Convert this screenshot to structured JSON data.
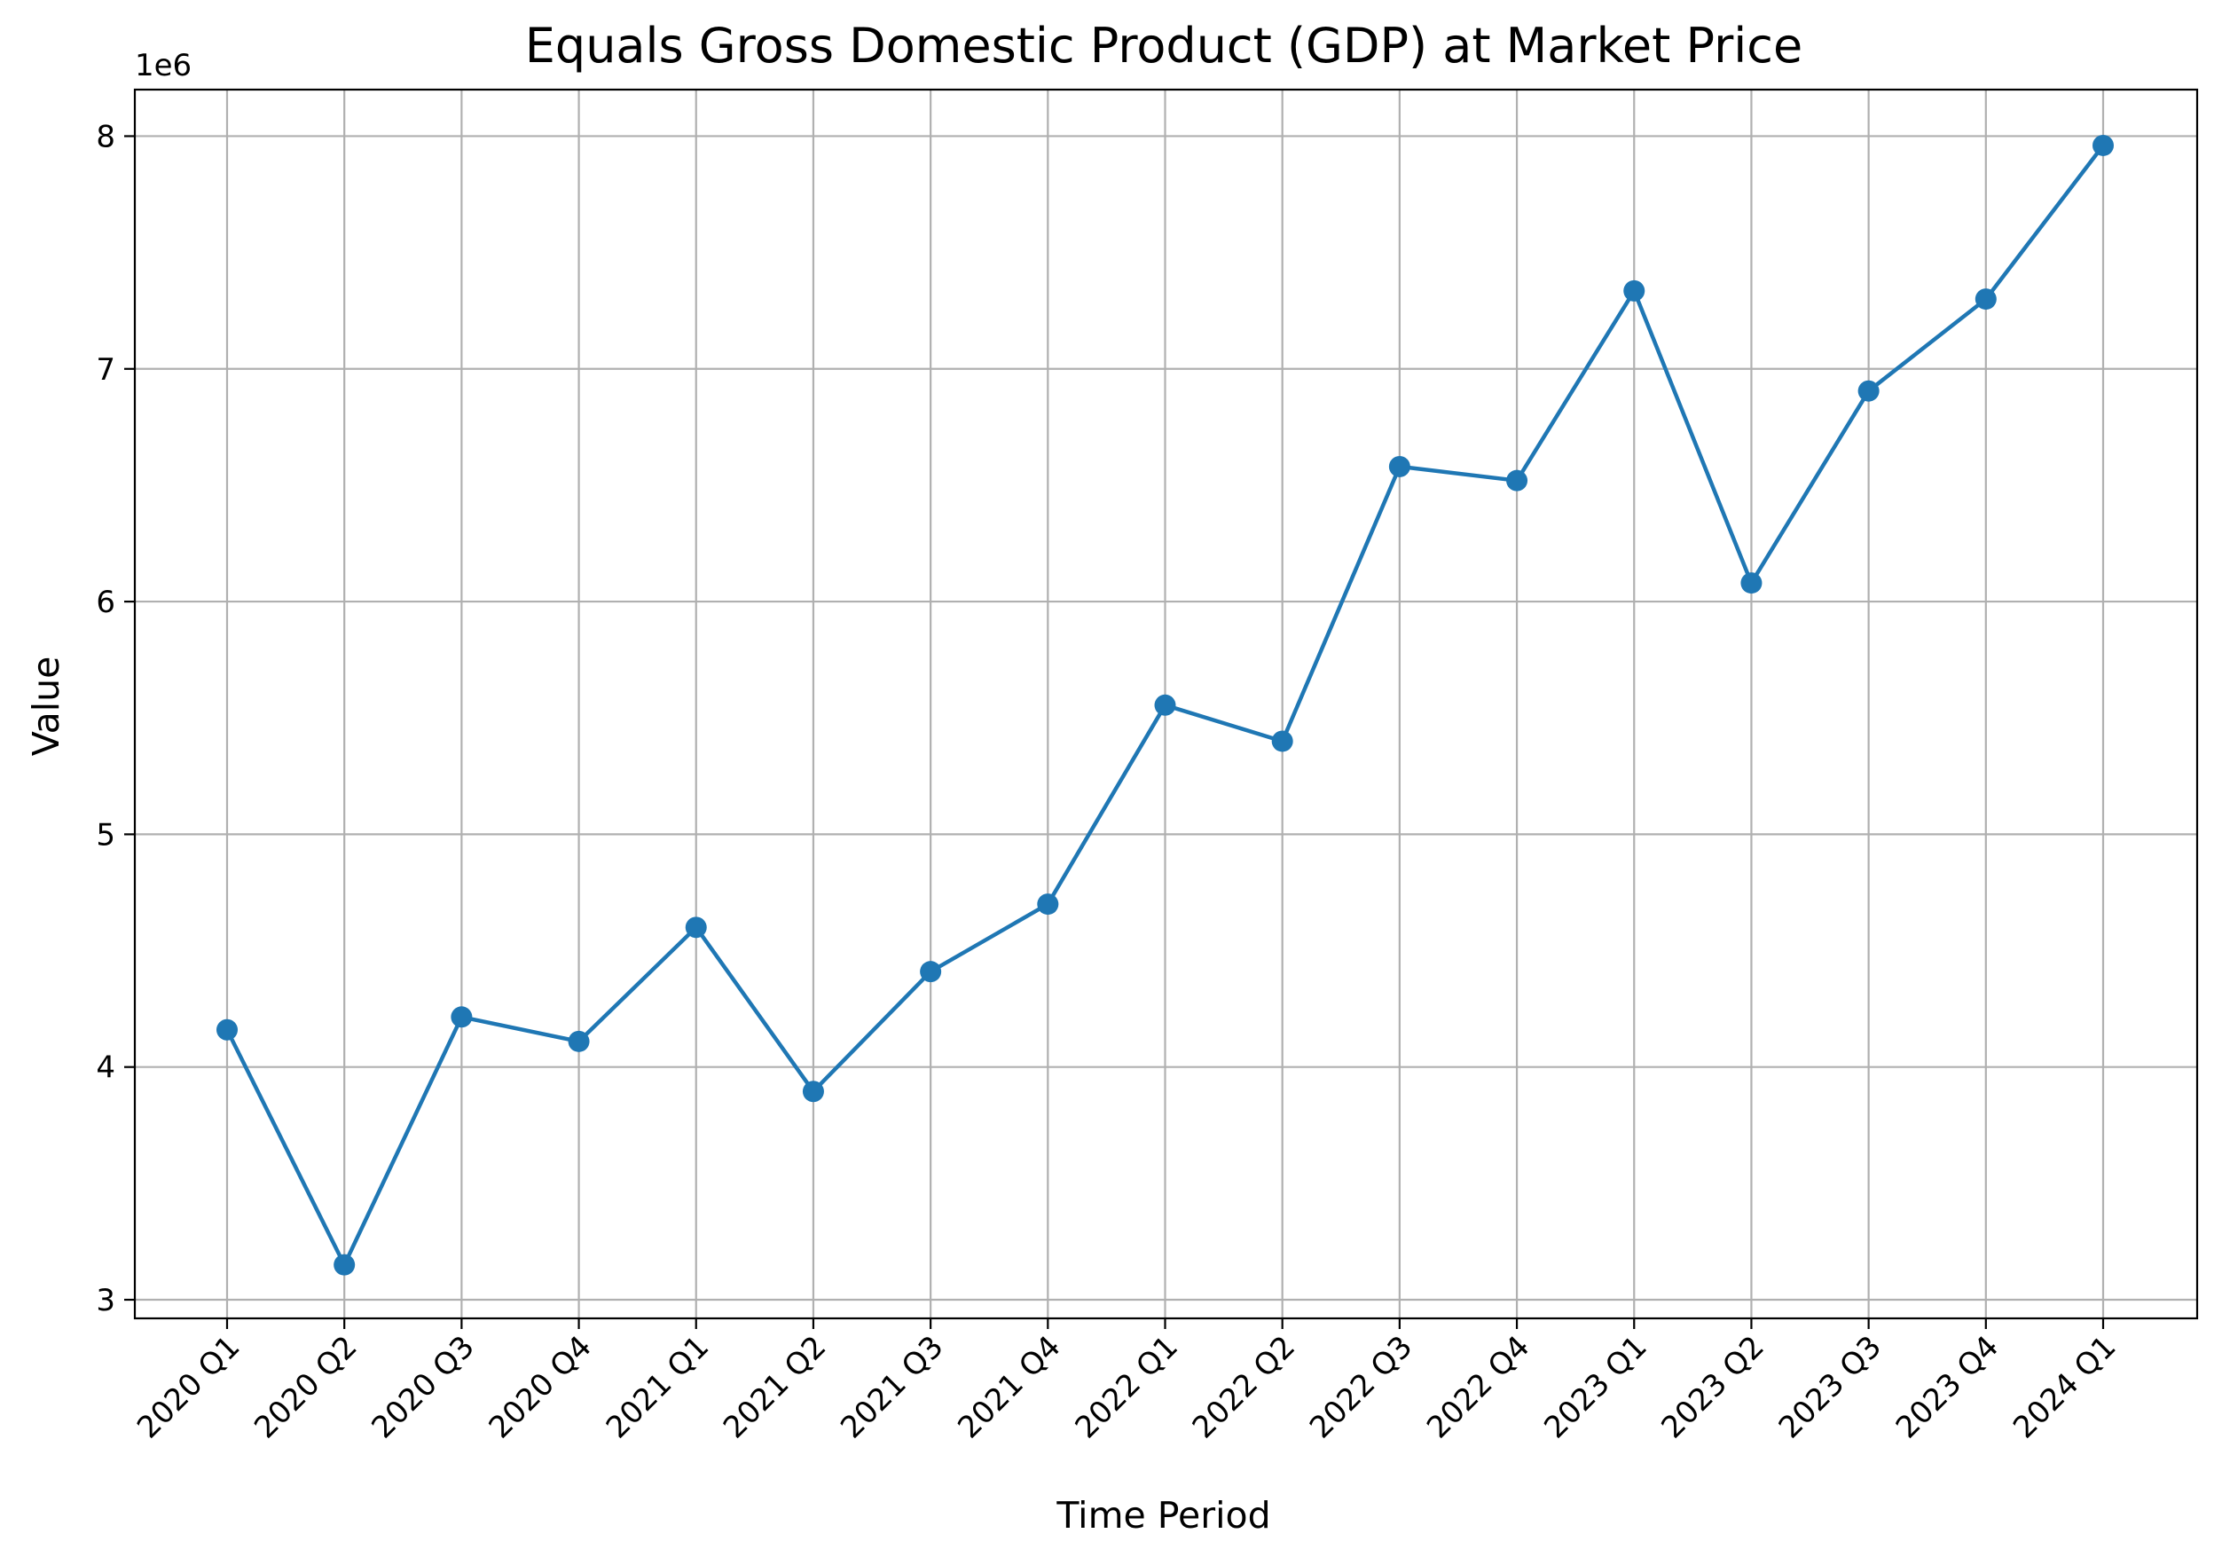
{
  "chart_data": {
    "type": "line",
    "title": "Equals Gross Domestic Product (GDP) at  Market Price",
    "xlabel": "Time Period",
    "ylabel": "Value",
    "y_offset_label": "1e6",
    "categories": [
      "2020 Q1",
      "2020 Q2",
      "2020 Q3",
      "2020 Q4",
      "2021 Q1",
      "2021 Q2",
      "2021 Q3",
      "2021 Q4",
      "2022 Q1",
      "2022 Q2",
      "2022 Q3",
      "2022 Q4",
      "2023 Q1",
      "2023 Q2",
      "2023 Q3",
      "2023 Q4",
      "2024 Q1"
    ],
    "series": [
      {
        "values": [
          4160000,
          3150000,
          4215000,
          4110000,
          4600000,
          3895000,
          4410000,
          4700000,
          5555000,
          5400000,
          6580000,
          6520000,
          7335000,
          6080000,
          6905000,
          7300000,
          7960000
        ],
        "color": "#1f77b4",
        "marker": "circle"
      }
    ],
    "yticks": [
      3,
      4,
      5,
      6,
      7,
      8
    ],
    "ytick_scale": 1000000,
    "ylim": [
      2920000,
      8200000
    ],
    "grid": true,
    "legend": "none"
  }
}
